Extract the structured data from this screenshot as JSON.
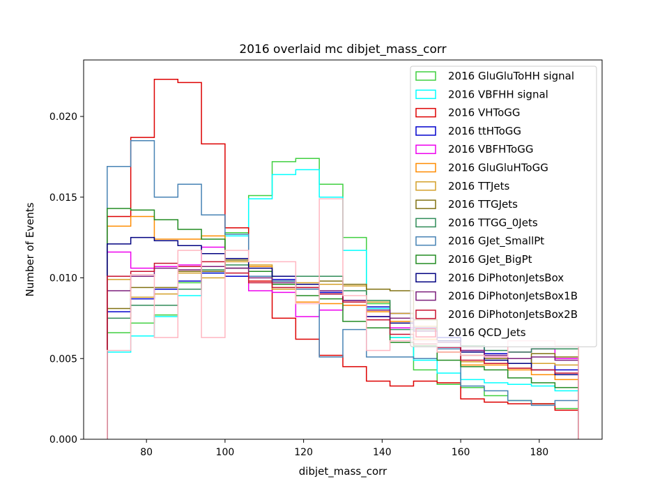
{
  "chart_data": {
    "type": "step-histogram",
    "title": "2016 overlaid mc dibjet_mass_corr",
    "xlabel": "dibjet_mass_corr",
    "ylabel": "Number of Events",
    "xlim": [
      64,
      196
    ],
    "ylim": [
      0,
      0.0235
    ],
    "xticks": [
      80,
      100,
      120,
      140,
      160,
      180
    ],
    "xtick_labels": [
      "80",
      "100",
      "120",
      "140",
      "160",
      "180"
    ],
    "yticks": [
      0,
      0.005,
      0.01,
      0.015,
      0.02
    ],
    "ytick_labels": [
      "0.000",
      "0.005",
      "0.010",
      "0.015",
      "0.020"
    ],
    "bin_edges": [
      70,
      76,
      82,
      88,
      94,
      100,
      106,
      112,
      118,
      124,
      130,
      136,
      142,
      148,
      154,
      160,
      166,
      172,
      178,
      184,
      190
    ],
    "legend_position": "upper right",
    "series": [
      {
        "name": "2016 GluGluToHH signal",
        "color": "#3fcf3f",
        "values": [
          0.0066,
          0.0072,
          0.0077,
          0.0097,
          0.0107,
          0.0128,
          0.0151,
          0.0172,
          0.0174,
          0.0158,
          0.0125,
          0.0084,
          0.0063,
          0.0043,
          0.0034,
          0.0032,
          0.0027,
          0.0024,
          0.0022,
          0.0019
        ]
      },
      {
        "name": "2016 VBFHH signal",
        "color": "#00ffff",
        "values": [
          0.0054,
          0.0064,
          0.0076,
          0.0089,
          0.0103,
          0.0126,
          0.0149,
          0.0164,
          0.0167,
          0.015,
          0.0117,
          0.0081,
          0.0063,
          0.0049,
          0.0041,
          0.0037,
          0.0035,
          0.0034,
          0.0033,
          0.003
        ]
      },
      {
        "name": "2016 VHToGG",
        "color": "#dd0000",
        "values": [
          0.0138,
          0.0187,
          0.0223,
          0.0221,
          0.0183,
          0.0131,
          0.0098,
          0.0075,
          0.0062,
          0.0052,
          0.0045,
          0.0036,
          0.0033,
          0.0036,
          0.0035,
          0.0025,
          0.0023,
          0.0022,
          0.0022,
          0.0018
        ]
      },
      {
        "name": "2016 ttHToGG",
        "color": "#0000cc",
        "values": [
          0.0079,
          0.0087,
          0.0093,
          0.0098,
          0.0103,
          0.0101,
          0.0101,
          0.0099,
          0.0096,
          0.0091,
          0.0086,
          0.0082,
          0.0078,
          0.0069,
          0.0063,
          0.0058,
          0.0053,
          0.005,
          0.0047,
          0.0043
        ]
      },
      {
        "name": "2016 VBFHToGG",
        "color": "#ee00ee",
        "values": [
          0.0116,
          0.0106,
          0.0107,
          0.0108,
          0.0119,
          0.0106,
          0.0092,
          0.0091,
          0.0076,
          0.008,
          0.0083,
          0.0076,
          0.0069,
          0.0061,
          0.0057,
          0.0055,
          0.0051,
          0.0054,
          0.0056,
          0.005
        ]
      },
      {
        "name": "2016 GluGluHToGG",
        "color": "#ff8c00",
        "values": [
          0.0132,
          0.0138,
          0.0124,
          0.0124,
          0.0126,
          0.0112,
          0.0107,
          0.0096,
          0.0085,
          0.0084,
          0.0083,
          0.0079,
          0.0073,
          0.0062,
          0.0054,
          0.0046,
          0.0046,
          0.0043,
          0.004,
          0.0037
        ]
      },
      {
        "name": "2016 TTJets",
        "color": "#d4a02a",
        "values": [
          0.0099,
          0.0088,
          0.009,
          0.0103,
          0.01,
          0.011,
          0.0108,
          0.0093,
          0.0097,
          0.0096,
          0.0095,
          0.0085,
          0.0078,
          0.007,
          0.0054,
          0.0048,
          0.0047,
          0.0044,
          0.0047,
          0.0046
        ]
      },
      {
        "name": "2016 TTGJets",
        "color": "#807010",
        "values": [
          0.0081,
          0.0094,
          0.0094,
          0.0104,
          0.0104,
          0.0111,
          0.0104,
          0.0098,
          0.0093,
          0.0098,
          0.0096,
          0.0093,
          0.0092,
          0.0074,
          0.0061,
          0.0052,
          0.005,
          0.0047,
          0.0053,
          0.0051
        ]
      },
      {
        "name": "2016 TTGG_0Jets",
        "color": "#2e8b57",
        "values": [
          0.0075,
          0.0083,
          0.0083,
          0.0093,
          0.0105,
          0.0108,
          0.0104,
          0.0101,
          0.0101,
          0.0101,
          0.0092,
          0.0086,
          0.0068,
          0.0068,
          0.0061,
          0.0058,
          0.0055,
          0.0054,
          0.0056,
          0.0056
        ]
      },
      {
        "name": "2016 GJet_SmallPt",
        "color": "#4682b4",
        "values": [
          0.0169,
          0.0185,
          0.015,
          0.0158,
          0.0139,
          0.0127,
          0.0101,
          0.0098,
          0.0093,
          0.0051,
          0.0068,
          0.0051,
          0.0051,
          0.005,
          0.0056,
          0.0033,
          0.003,
          0.0024,
          0.0021,
          0.0024
        ]
      },
      {
        "name": "2016 GJet_BigPt",
        "color": "#228b22",
        "values": [
          0.0143,
          0.0142,
          0.0136,
          0.013,
          0.0124,
          0.0106,
          0.0104,
          0.0096,
          0.0089,
          0.0087,
          0.0073,
          0.0069,
          0.006,
          0.0058,
          0.0049,
          0.0045,
          0.0043,
          0.0038,
          0.0035,
          0.0032
        ]
      },
      {
        "name": "2016 DiPhotonJetsBox",
        "color": "#000080",
        "values": [
          0.0121,
          0.0125,
          0.0123,
          0.012,
          0.0115,
          0.0112,
          0.0106,
          0.0101,
          0.0096,
          0.009,
          0.0085,
          0.0076,
          0.0072,
          0.0067,
          0.0061,
          0.0054,
          0.0049,
          0.0047,
          0.0043,
          0.004
        ]
      },
      {
        "name": "2016 DiPhotonJetsBox1B",
        "color": "#7b1f7b",
        "values": [
          0.0092,
          0.0101,
          0.0106,
          0.0105,
          0.0107,
          0.0106,
          0.01,
          0.0097,
          0.0094,
          0.0092,
          0.0086,
          0.008,
          0.0075,
          0.0067,
          0.006,
          0.0055,
          0.0052,
          0.005,
          0.0051,
          0.0049
        ]
      },
      {
        "name": "2016 DiPhotonJetsBox2B",
        "color": "#c8102e",
        "values": [
          0.0101,
          0.0104,
          0.0109,
          0.0107,
          0.011,
          0.0103,
          0.0097,
          0.0094,
          0.0094,
          0.009,
          0.0085,
          0.0074,
          0.0065,
          0.0059,
          0.0057,
          0.0049,
          0.0047,
          0.0044,
          0.0043,
          0.0041
        ]
      },
      {
        "name": "2016 QCD_Jets",
        "color": "#ffb6c1",
        "values": [
          0.0055,
          0.0102,
          0.0063,
          0.0117,
          0.0063,
          0.0117,
          0.011,
          0.011,
          0.0084,
          0.0149,
          0.0089,
          0.0055,
          0.0061,
          0.0061,
          0.0054,
          0.0052,
          0.0051,
          0.0061,
          0.0061,
          0.0058
        ]
      }
    ]
  }
}
